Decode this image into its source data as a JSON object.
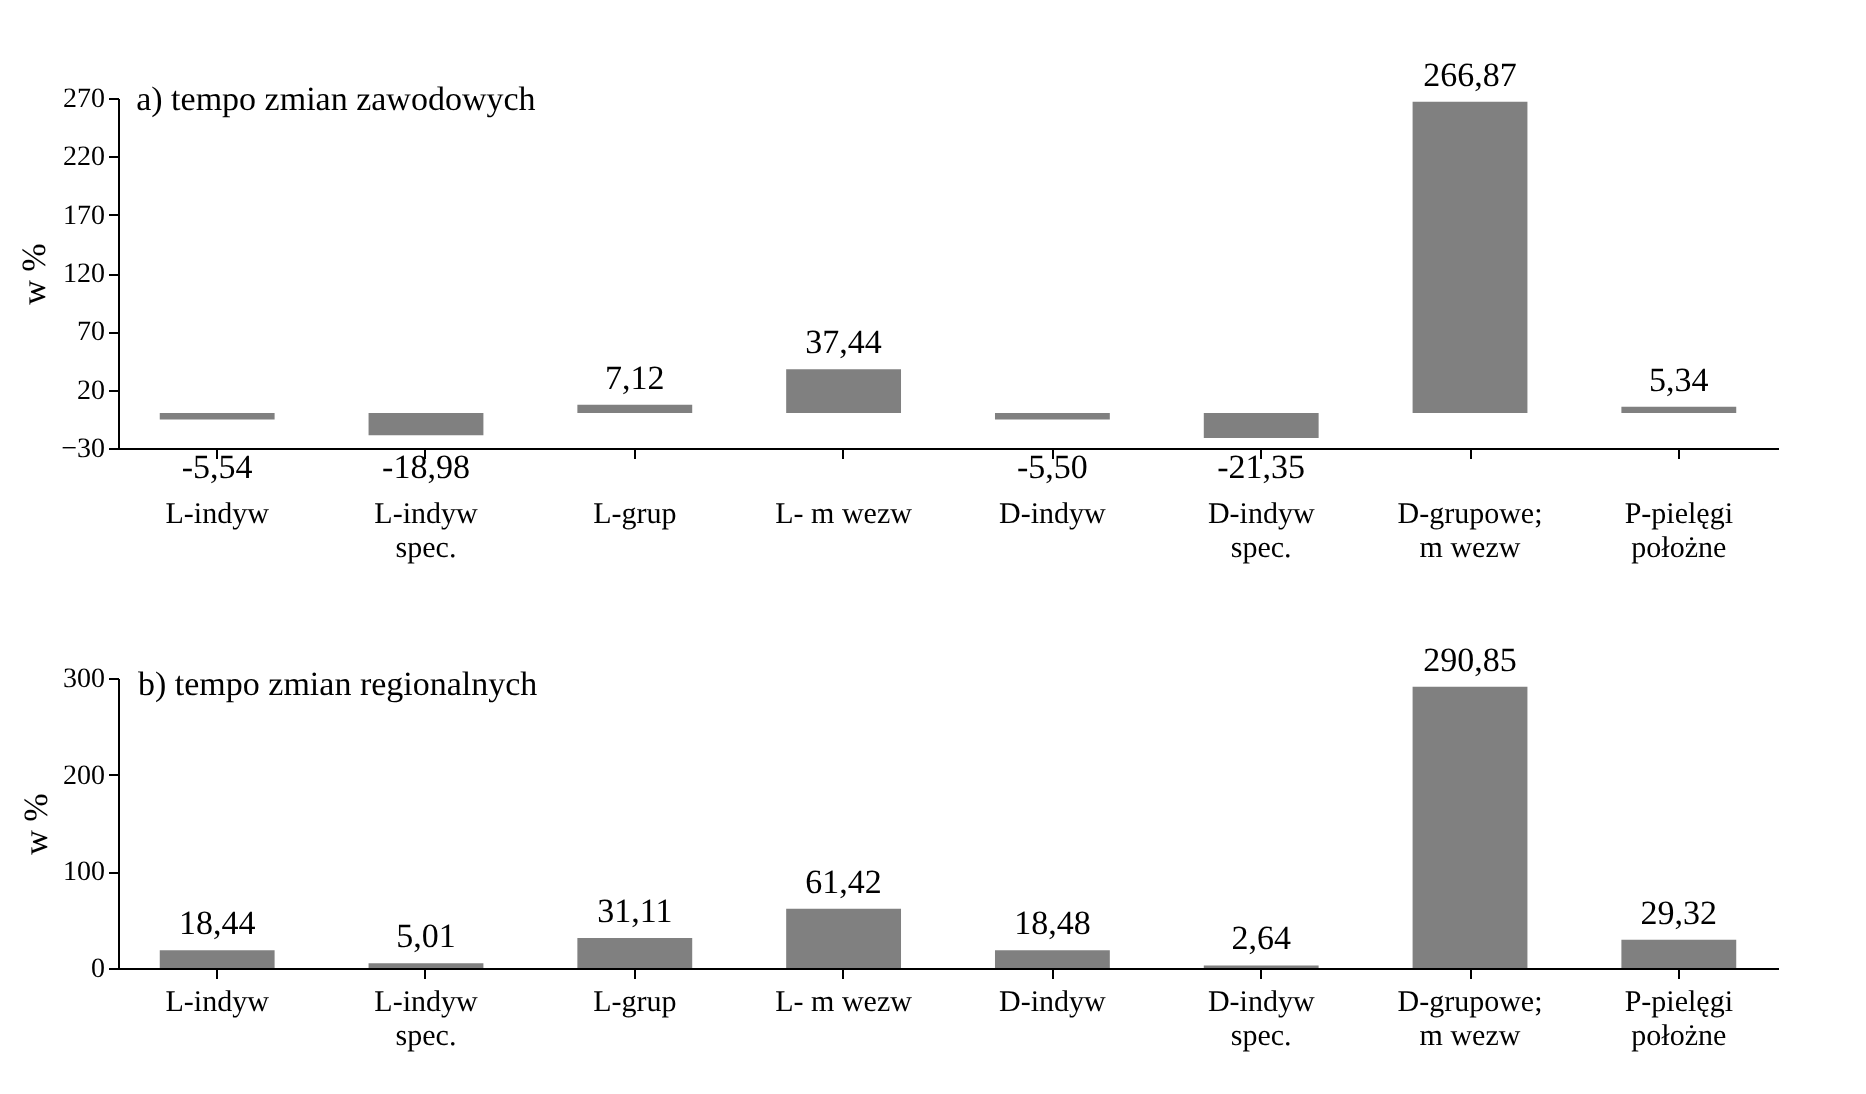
{
  "chart_data": [
    {
      "type": "bar",
      "title": "a) tempo zmian zawodowych",
      "ylabel": "w %",
      "categories": [
        "L-indyw",
        "L-indyw\nspec.",
        "L-grup",
        "L- m wezw",
        "D-indyw",
        "D-indyw\nspec.",
        "D-grupowe;\nm wezw",
        "P-pielęgi\npołożne"
      ],
      "values": [
        -5.54,
        -18.98,
        7.12,
        37.44,
        -5.5,
        -21.35,
        266.87,
        5.34
      ],
      "color": "#808080",
      "value_labels": [
        "-5,54",
        "-18,98",
        "7,12",
        "37,44",
        "-5,50",
        "-21,35",
        "266,87",
        "5,34"
      ],
      "ylim": [
        -30,
        270
      ],
      "yticks": [
        -30,
        20,
        70,
        120,
        170,
        220,
        270
      ],
      "grid": false
    },
    {
      "type": "bar",
      "title": "b) tempo zmian regionalnych",
      "ylabel": "w %",
      "categories": [
        "L-indyw",
        "L-indyw\nspec.",
        "L-grup",
        "L- m wezw",
        "D-indyw",
        "D-indyw\nspec.",
        "D-grupowe;\nm wezw",
        "P-pielęgi\npołożne"
      ],
      "values": [
        18.44,
        5.01,
        31.11,
        61.42,
        18.48,
        2.64,
        290.85,
        29.32
      ],
      "color": "#808080",
      "value_labels": [
        "18,44",
        "5,01",
        "31,11",
        "61,42",
        "18,48",
        "2,64",
        "290,85",
        "29,32"
      ],
      "ylim": [
        0,
        300
      ],
      "yticks": [
        0,
        100,
        200,
        300
      ],
      "grid": false
    }
  ]
}
